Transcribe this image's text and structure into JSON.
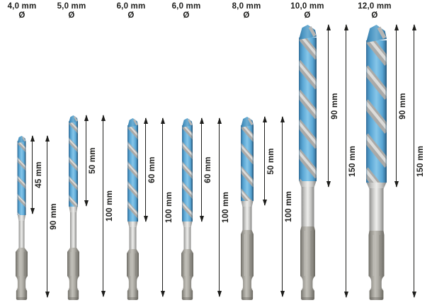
{
  "diagram": {
    "unit_symbol": "Ø"
  },
  "bits": [
    {
      "diameter": "4,0 mm",
      "symbol": "Ø",
      "dims": [
        {
          "label": "45 mm"
        },
        {
          "label": "90 mm"
        }
      ]
    },
    {
      "diameter": "5,0 mm",
      "symbol": "Ø",
      "dims": [
        {
          "label": "50 mm"
        },
        {
          "label": "100 mm"
        }
      ]
    },
    {
      "diameter": "6,0 mm",
      "symbol": "Ø",
      "dims": [
        {
          "label": "60 mm"
        },
        {
          "label": "100 mm"
        }
      ]
    },
    {
      "diameter": "6,0 mm",
      "symbol": "Ø",
      "dims": [
        {
          "label": "60 mm"
        },
        {
          "label": "100 mm"
        }
      ]
    },
    {
      "diameter": "8,0 mm",
      "symbol": "Ø",
      "dims": [
        {
          "label": "50 mm"
        },
        {
          "label": "100 mm"
        }
      ]
    },
    {
      "diameter": "10,0 mm",
      "symbol": "Ø",
      "dims": [
        {
          "label": "90 mm"
        },
        {
          "label": "150 mm"
        }
      ]
    },
    {
      "diameter": "12,0 mm",
      "symbol": "Ø",
      "dims": [
        {
          "label": "90 mm"
        },
        {
          "label": "150 mm"
        }
      ]
    }
  ],
  "colors": {
    "background": "#ffffff",
    "text": "#1d1d1b",
    "arrow": "#1d1d1b",
    "flute_blue": "#5aa7d5",
    "flute_blue_light": "#86c6e9",
    "flute_blue_dark": "#3a7ba8",
    "steel_bright": "#eeeeec",
    "steel_mid": "#c6c6c4",
    "steel_dark": "#8f8f8d",
    "shank_light": "#c2c0b9",
    "shank_mid": "#9b9992",
    "shank_dark": "#6f6d66",
    "stripe_silver": "#aaaaa8"
  }
}
